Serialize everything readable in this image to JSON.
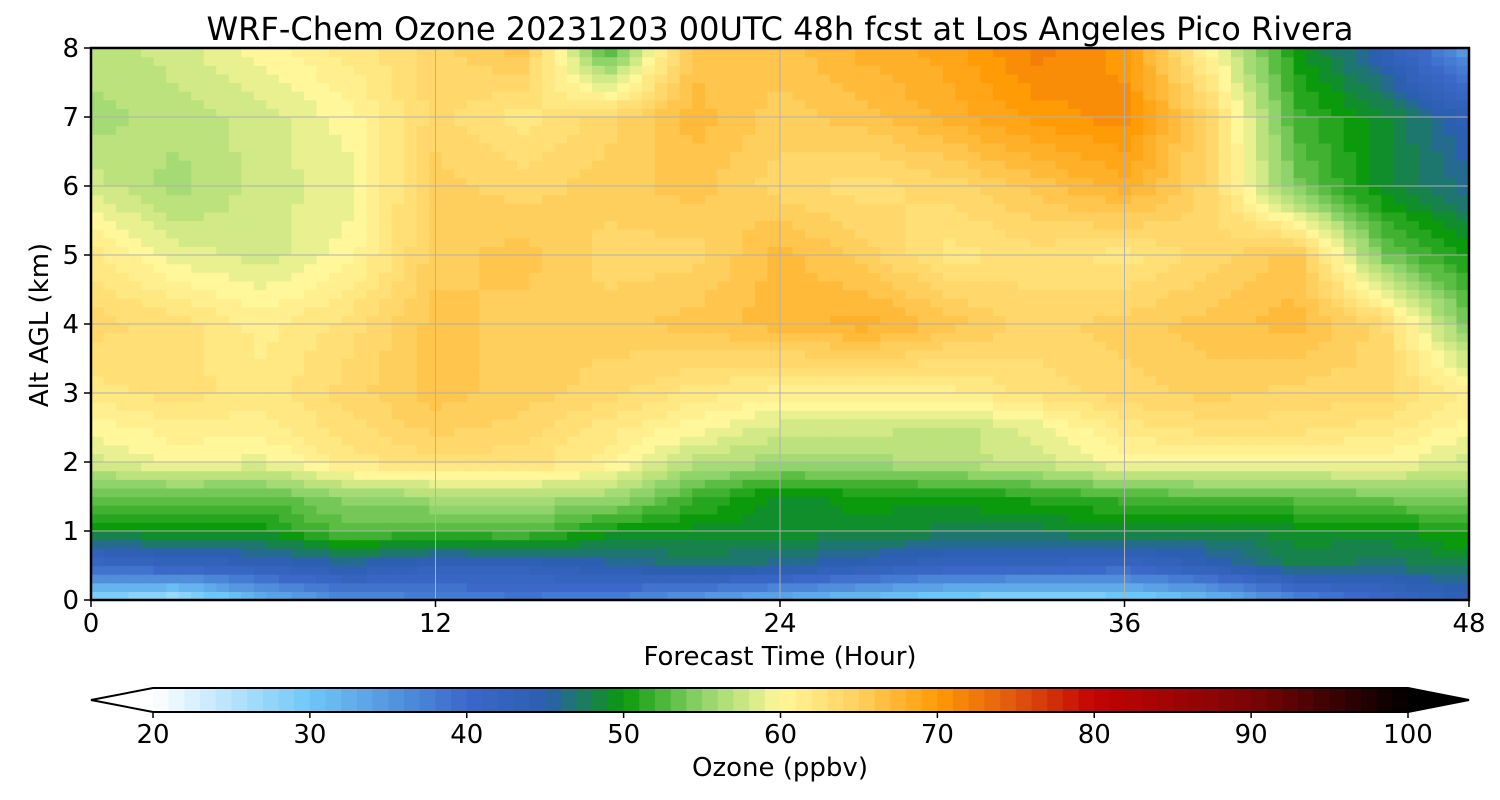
{
  "chart_data": {
    "type": "heatmap",
    "title": "WRF-Chem Ozone  20231203 00UTC 48h fcst at Los Angeles Pico Rivera",
    "xlabel": "Forecast Time (Hour)",
    "ylabel": "Alt AGL (km)",
    "xlim": [
      0,
      48
    ],
    "ylim": [
      0,
      8
    ],
    "x_ticks": [
      0,
      12,
      24,
      36,
      48
    ],
    "y_ticks": [
      0,
      1,
      2,
      3,
      4,
      5,
      6,
      7,
      8
    ],
    "grid": true,
    "x": [
      0,
      3,
      6,
      9,
      12,
      15,
      18,
      21,
      24,
      27,
      30,
      33,
      36,
      39,
      42,
      45,
      48
    ],
    "y": [
      0,
      0.5,
      1.0,
      1.5,
      2.0,
      2.5,
      3.0,
      4.0,
      5.0,
      6.0,
      7.0,
      8.0
    ],
    "z": [
      [
        28,
        25,
        32,
        36,
        37,
        38,
        37,
        34,
        32,
        30,
        28,
        27,
        28,
        31,
        36,
        40,
        44
      ],
      [
        40,
        42,
        43,
        45,
        43,
        43,
        45,
        47,
        46,
        44,
        42,
        42,
        41,
        44,
        48,
        47,
        48
      ],
      [
        49,
        50,
        50,
        53,
        52,
        53,
        50,
        49,
        49,
        49,
        48,
        48,
        49,
        48,
        49,
        49,
        51
      ],
      [
        53,
        53,
        53,
        55,
        56,
        56,
        56,
        52,
        49,
        50,
        50,
        51,
        52,
        53,
        53,
        54,
        55
      ],
      [
        58,
        60,
        59,
        62,
        63,
        63,
        61,
        57,
        56,
        56,
        57,
        58,
        60,
        60,
        60,
        60,
        58
      ],
      [
        60,
        61,
        61,
        63,
        65,
        64,
        62,
        60,
        58,
        58,
        57,
        59,
        62,
        63,
        63,
        62,
        60
      ],
      [
        62,
        63,
        62,
        64,
        66,
        65,
        64,
        62,
        61,
        61,
        61,
        63,
        64,
        65,
        64,
        64,
        61
      ],
      [
        64,
        63,
        61,
        63,
        66,
        65,
        65,
        66,
        67,
        68,
        66,
        64,
        65,
        66,
        67,
        64,
        54
      ],
      [
        62,
        59,
        58,
        60,
        65,
        66,
        64,
        64,
        67,
        65,
        62,
        63,
        62,
        64,
        66,
        54,
        50
      ],
      [
        58,
        56,
        58,
        59,
        65,
        64,
        65,
        66,
        64,
        63,
        64,
        66,
        68,
        64,
        54,
        49,
        46
      ],
      [
        56,
        57,
        58,
        60,
        64,
        62,
        64,
        67,
        65,
        66,
        68,
        70,
        71,
        64,
        52,
        49,
        44
      ],
      [
        57,
        58,
        60,
        62,
        64,
        66,
        52,
        66,
        66,
        68,
        69,
        72,
        70,
        60,
        50,
        44,
        34
      ]
    ],
    "colorbar": {
      "label": "Ozone  (ppbv)",
      "min": 20,
      "max": 100,
      "ticks": [
        20,
        30,
        40,
        50,
        60,
        70,
        80,
        90,
        100
      ],
      "extend": "both",
      "colors": {
        "20": "#ffffff",
        "30": "#6fc7f7",
        "40": "#3b68c9",
        "45": "#2b5fb0",
        "50": "#0b9a0b",
        "55": "#8fd46a",
        "60": "#fff79a",
        "65": "#ffcf5e",
        "70": "#ff9b05",
        "75": "#e0560f",
        "80": "#c40303",
        "90": "#7a0505",
        "100": "#000000"
      }
    }
  }
}
